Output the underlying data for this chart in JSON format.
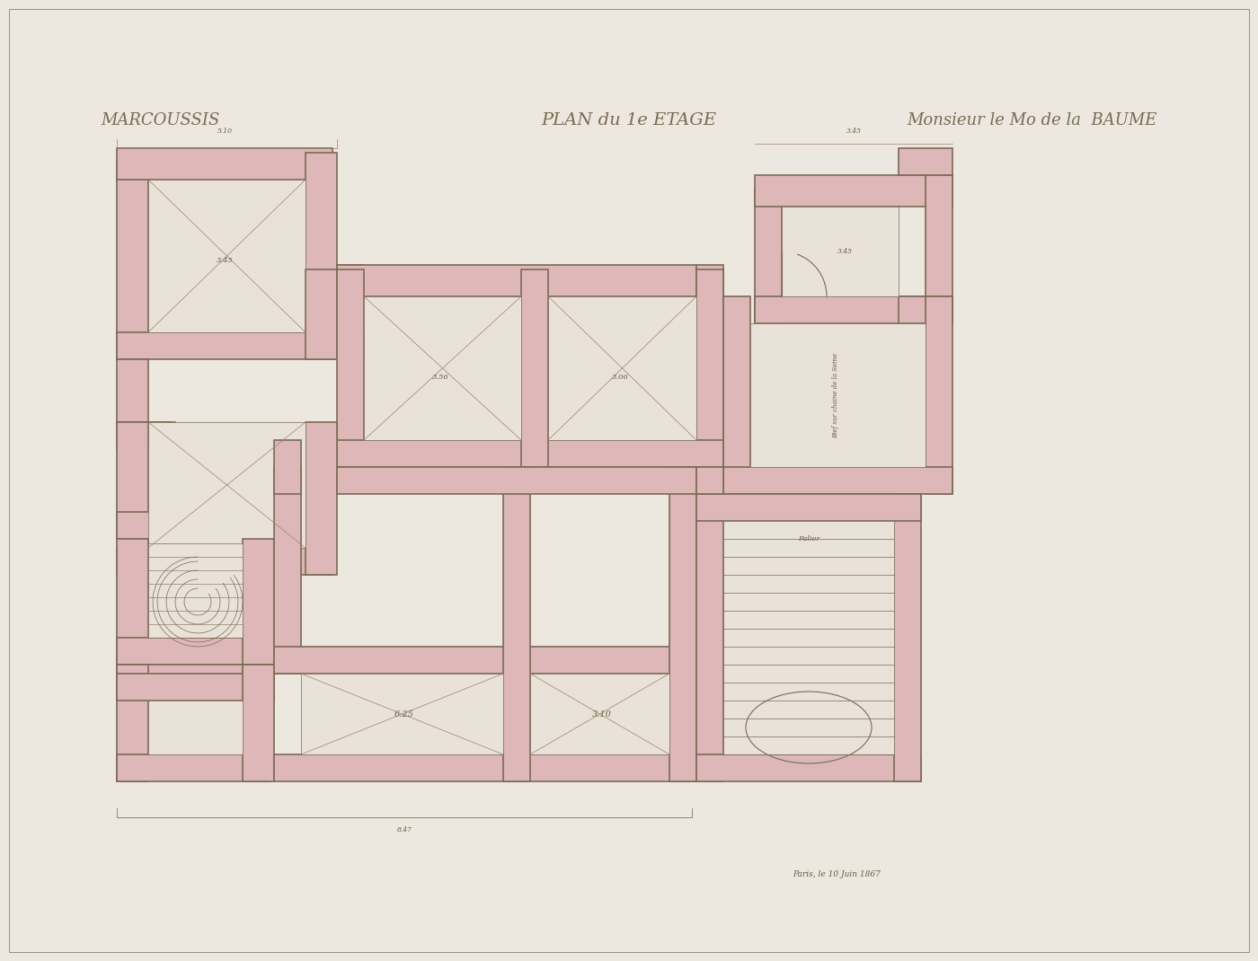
{
  "background_color": "#ede8df",
  "paper_color": "#e8e2d8",
  "wall_fill": "#deb8b8",
  "line_color": "#7a6a55",
  "thin_line_color": "#9B8370",
  "dim_color": "#6B5B45",
  "title_left": "MARCOUSSIS",
  "title_center": "PLAN du 1e ETAGE",
  "title_right": "Monsieur le Mo de la  BAUME",
  "date_text": "Paris, le 10 Juin 1867",
  "title_fontsize": 13,
  "wall_thickness": 0.3
}
